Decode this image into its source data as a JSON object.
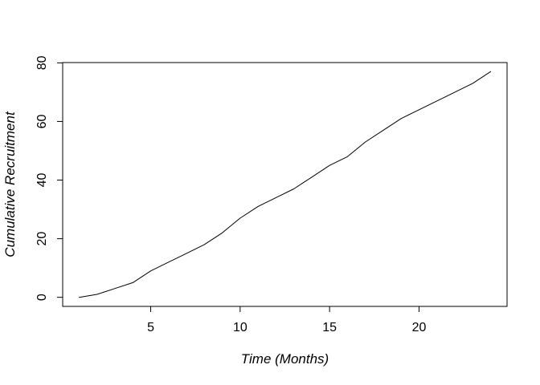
{
  "figure": {
    "background": "#ffffff",
    "foreground": "#000000"
  },
  "chart_data": {
    "type": "line",
    "title": "",
    "xlabel": "Time (Months)",
    "ylabel": "Cumulative Recruitment",
    "legend": "none",
    "grid": false,
    "frame": "box",
    "line_color": "#000000",
    "line_width": 1,
    "xlim": [
      0.08,
      24.92
    ],
    "ylim": [
      -3.1,
      80.1
    ],
    "x_ticks": [
      5,
      10,
      15,
      20
    ],
    "y_ticks": [
      0,
      20,
      40,
      60,
      80
    ],
    "series": [
      {
        "name": "cumulative-recruitment",
        "x": [
          1,
          2,
          3,
          4,
          5,
          6,
          7,
          8,
          9,
          10,
          11,
          12,
          13,
          14,
          15,
          16,
          17,
          18,
          19,
          20,
          21,
          22,
          23,
          24
        ],
        "y": [
          0,
          1,
          3,
          5,
          9,
          12,
          15,
          18,
          22,
          27,
          31,
          34,
          37,
          41,
          45,
          48,
          53,
          57,
          61,
          64,
          67,
          70,
          73,
          77
        ]
      }
    ]
  }
}
